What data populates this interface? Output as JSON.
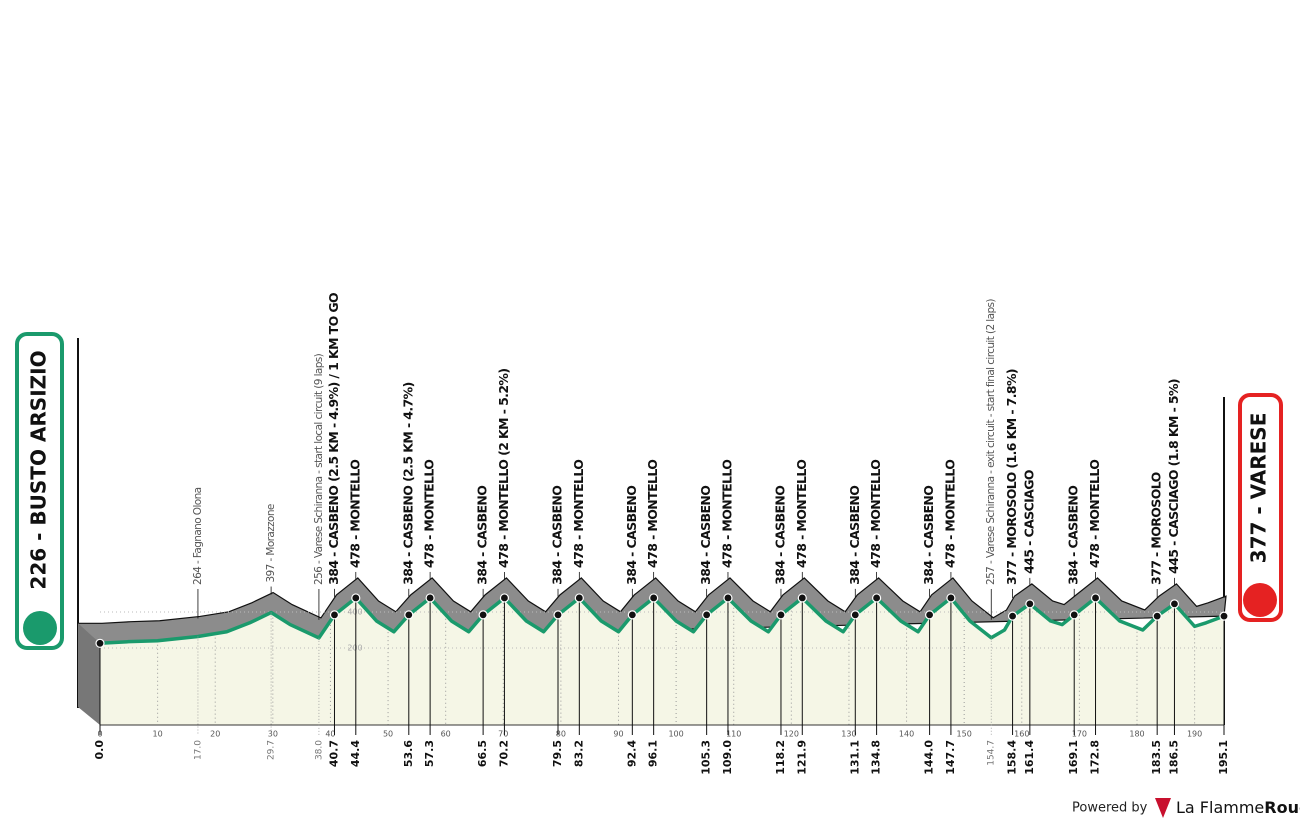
{
  "chart_data": {
    "type": "elevation",
    "start_label": "226 - BUSTO ARSIZIO",
    "finish_label": "377 - VARESE",
    "x": [
      0,
      5,
      10,
      17,
      22,
      26,
      29.7,
      33,
      38,
      40.7,
      44.4,
      48,
      51,
      53.6,
      57.3,
      61,
      64,
      66.5,
      70.2,
      74,
      77,
      79.5,
      83.2,
      87,
      90,
      92.4,
      96.1,
      100,
      103,
      105.3,
      109.0,
      113,
      116,
      118.2,
      121.9,
      126,
      129,
      131.1,
      134.8,
      139,
      142,
      144.0,
      147.7,
      151,
      154.7,
      157,
      158.4,
      161.4,
      165,
      167,
      169.1,
      172.8,
      177,
      181,
      183.5,
      186.5,
      190,
      192,
      195.1
    ],
    "values": [
      226,
      235,
      240,
      264,
      290,
      340,
      397,
      330,
      256,
      384,
      478,
      350,
      290,
      384,
      478,
      350,
      290,
      384,
      478,
      350,
      290,
      384,
      478,
      350,
      290,
      384,
      478,
      350,
      290,
      384,
      478,
      350,
      290,
      384,
      478,
      350,
      290,
      384,
      478,
      350,
      290,
      384,
      478,
      350,
      257,
      300,
      377,
      445,
      350,
      330,
      384,
      478,
      350,
      300,
      377,
      445,
      320,
      340,
      377
    ],
    "xlim": [
      0,
      195.1
    ],
    "ylim": [
      -228,
      700
    ],
    "xticks": [
      0,
      10,
      20,
      30,
      40,
      50,
      60,
      70,
      80,
      90,
      100,
      110,
      120,
      130,
      140,
      150,
      160,
      170,
      180,
      190
    ],
    "yticks": [
      200,
      400
    ],
    "line_color": "#1a9a6c",
    "area_color": "#f5f6e6",
    "relief_color": "#8c8c8c",
    "waypoints": [
      {
        "km": {
          "value": 0,
          "label": "0.0"
        },
        "major": true
      },
      {
        "km": {
          "value": 17,
          "label": "17.0"
        },
        "name": "264 - Fagnano Olona",
        "major": false
      },
      {
        "km": 29.7,
        "name": "397 - Morazzone",
        "major": false
      },
      {
        "km": {
          "value": 38,
          "label": "38.0"
        },
        "name": "256 - Varese Schiranna - start local circuit (9 laps)",
        "major": false
      },
      {
        "km": 40.7,
        "name": "384 - CASBENO (2.5 KM - 4.9%) / 1 KM TO GO",
        "major": true
      },
      {
        "km": 44.4,
        "name": "478 - MONTELLO",
        "major": true
      },
      {
        "km": 53.6,
        "name": "384 - CASBENO (2.5 KM - 4.7%)",
        "major": true
      },
      {
        "km": 57.3,
        "name": "478 - MONTELLO",
        "major": true
      },
      {
        "km": 66.5,
        "name": "384 - CASBENO",
        "major": true
      },
      {
        "km": 70.2,
        "name": "478 - MONTELLO (2 KM - 5.2%)",
        "major": true
      },
      {
        "km": 79.5,
        "name": "384 - CASBENO",
        "major": true
      },
      {
        "km": 83.2,
        "name": "478 - MONTELLO",
        "major": true
      },
      {
        "km": 92.4,
        "name": "384 - CASBENO",
        "major": true
      },
      {
        "km": 96.1,
        "name": "478 - MONTELLO",
        "major": true
      },
      {
        "km": 105.3,
        "name": "384 - CASBENO",
        "major": true
      },
      {
        "km": {
          "value": 109,
          "label": "109.0"
        },
        "name": "478 - MONTELLO",
        "major": true
      },
      {
        "km": 118.2,
        "name": "384 - CASBENO",
        "major": true
      },
      {
        "km": 121.9,
        "name": "478 - MONTELLO",
        "major": true
      },
      {
        "km": 131.1,
        "name": "384 - CASBENO",
        "major": true
      },
      {
        "km": 134.8,
        "name": "478 - MONTELLO",
        "major": true
      },
      {
        "km": {
          "value": 144,
          "label": "144.0"
        },
        "name": "384 - CASBENO",
        "major": true
      },
      {
        "km": 147.7,
        "name": "478 - MONTELLO",
        "major": true
      },
      {
        "km": 154.7,
        "name": "257 - Varese Schiranna - exit circuit - start final circuit (2 laps)",
        "major": false
      },
      {
        "km": 158.4,
        "name": "377 - MOROSOLO (1.6 KM - 7.8%)",
        "major": true
      },
      {
        "km": 161.4,
        "name": "445 - CASCIAGO",
        "major": true
      },
      {
        "km": 169.1,
        "name": "384 - CASBENO",
        "major": true
      },
      {
        "km": 172.8,
        "name": "478 - MONTELLO",
        "major": true
      },
      {
        "km": 183.5,
        "name": "377 - MOROSOLO",
        "major": true
      },
      {
        "km": 186.5,
        "name": "445 - CASCIAGO (1.8 KM - 5%)",
        "major": true
      },
      {
        "km": 195.1,
        "major": true
      }
    ]
  },
  "footer": {
    "powered": "Powered by",
    "brand_light": "La Flamme",
    "brand_bold": "Rouge"
  }
}
